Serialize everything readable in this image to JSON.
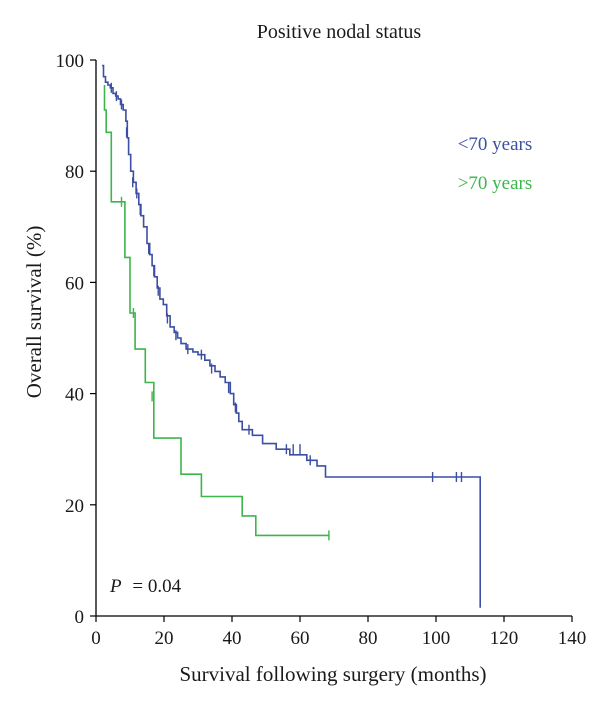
{
  "chart_data": {
    "type": "line",
    "subtype": "kaplan-meier survival curve",
    "title": "Positive nodal status",
    "xlabel": "Survival following surgery (months)",
    "ylabel": "Overall survival (%)",
    "xlim": [
      0,
      140
    ],
    "ylim": [
      0,
      100
    ],
    "xticks": [
      0,
      20,
      40,
      60,
      80,
      100,
      120,
      140
    ],
    "yticks": [
      0,
      20,
      40,
      60,
      80,
      100
    ],
    "grid": false,
    "legend_position": "top-right",
    "annotation": {
      "p_label": "P",
      "p_value": "= 0.04"
    },
    "series": [
      {
        "name": "<70 years",
        "color": "#3b4fa3",
        "steps": [
          [
            1.8,
            99
          ],
          [
            2.2,
            97
          ],
          [
            2.8,
            96
          ],
          [
            3.5,
            95.5
          ],
          [
            4.2,
            95
          ],
          [
            5.0,
            94
          ],
          [
            5.8,
            93.5
          ],
          [
            6.5,
            93
          ],
          [
            7.2,
            92
          ],
          [
            8.0,
            91
          ],
          [
            8.8,
            89
          ],
          [
            9.2,
            86
          ],
          [
            9.6,
            83
          ],
          [
            10.2,
            80
          ],
          [
            11.0,
            78
          ],
          [
            11.8,
            76
          ],
          [
            12.6,
            74
          ],
          [
            13.2,
            72
          ],
          [
            14.0,
            70
          ],
          [
            15.0,
            67
          ],
          [
            15.8,
            65
          ],
          [
            16.5,
            63
          ],
          [
            17.2,
            61
          ],
          [
            18.0,
            59
          ],
          [
            18.8,
            57
          ],
          [
            19.8,
            56
          ],
          [
            20.8,
            54
          ],
          [
            21.8,
            52
          ],
          [
            23.0,
            51
          ],
          [
            24.0,
            50
          ],
          [
            25.0,
            49
          ],
          [
            26.5,
            48
          ],
          [
            28.5,
            47.5
          ],
          [
            30.0,
            47
          ],
          [
            32.0,
            46
          ],
          [
            33.5,
            45
          ],
          [
            35.0,
            44
          ],
          [
            36.5,
            43
          ],
          [
            38.0,
            42
          ],
          [
            39.5,
            40
          ],
          [
            40.5,
            38
          ],
          [
            41.3,
            36.5
          ],
          [
            42.0,
            35
          ],
          [
            43.0,
            33.5
          ],
          [
            46.0,
            32.5
          ],
          [
            49.0,
            31
          ],
          [
            53.0,
            30
          ],
          [
            57.0,
            29
          ],
          [
            62.0,
            28
          ],
          [
            65.0,
            27
          ],
          [
            67.5,
            25
          ],
          [
            113.0,
            25
          ],
          [
            113.0,
            1.5
          ]
        ],
        "censored": [
          [
            4.5,
            95
          ],
          [
            6.0,
            93.5
          ],
          [
            7.5,
            92
          ],
          [
            9.0,
            87
          ],
          [
            10.8,
            78
          ],
          [
            12.0,
            76
          ],
          [
            13.0,
            73
          ],
          [
            15.5,
            66
          ],
          [
            17.0,
            62
          ],
          [
            18.3,
            58.5
          ],
          [
            21.0,
            53.5
          ],
          [
            23.5,
            50.5
          ],
          [
            27.0,
            48
          ],
          [
            31.0,
            47
          ],
          [
            34.0,
            44.5
          ],
          [
            39.0,
            41
          ],
          [
            41.0,
            37.5
          ],
          [
            45.0,
            33.5
          ],
          [
            56.0,
            30
          ],
          [
            58.0,
            30
          ],
          [
            60.0,
            30
          ],
          [
            63.0,
            28
          ],
          [
            99.0,
            25
          ],
          [
            106.0,
            25
          ],
          [
            107.5,
            25
          ]
        ]
      },
      {
        "name": ">70 years",
        "color": "#3cb54a",
        "steps": [
          [
            2.5,
            95.5
          ],
          [
            2.5,
            91
          ],
          [
            3.0,
            91
          ],
          [
            3.0,
            87
          ],
          [
            4.5,
            87
          ],
          [
            4.5,
            74.5
          ],
          [
            8.5,
            74.5
          ],
          [
            8.5,
            64.5
          ],
          [
            10.0,
            64.5
          ],
          [
            10.0,
            54.5
          ],
          [
            11.5,
            54.5
          ],
          [
            11.5,
            48
          ],
          [
            14.5,
            48
          ],
          [
            14.5,
            42
          ],
          [
            17.0,
            42
          ],
          [
            17.0,
            32
          ],
          [
            25.0,
            32
          ],
          [
            25.0,
            25.5
          ],
          [
            31.0,
            25.5
          ],
          [
            31.0,
            21.5
          ],
          [
            43.0,
            21.5
          ],
          [
            43.0,
            18
          ],
          [
            47.0,
            18
          ],
          [
            47.0,
            14.5
          ],
          [
            68.5,
            14.5
          ]
        ],
        "censored": [
          [
            7.5,
            74.5
          ],
          [
            11.0,
            54.5
          ],
          [
            16.5,
            39.5
          ],
          [
            68.5,
            14.5
          ]
        ]
      }
    ]
  }
}
